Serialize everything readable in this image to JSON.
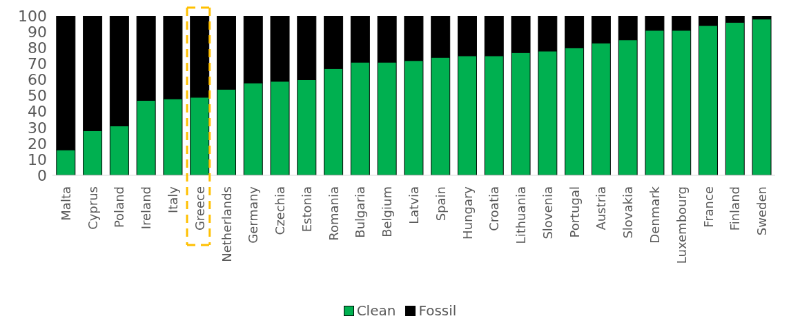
{
  "chart_data": {
    "type": "bar",
    "stacked": true,
    "categories": [
      "Malta",
      "Cyprus",
      "Poland",
      "Ireland",
      "Italy",
      "Greece",
      "Netherlands",
      "Germany",
      "Czechia",
      "Estonia",
      "Romania",
      "Bulgaria",
      "Belgium",
      "Latvia",
      "Spain",
      "Hungary",
      "Croatia",
      "Lithuania",
      "Slovenia",
      "Portugal",
      "Austria",
      "Slovakia",
      "Denmark",
      "Luxembourg",
      "France",
      "Finland",
      "Sweden"
    ],
    "series": [
      {
        "name": "Clean",
        "color": "#00b050",
        "values": [
          16,
          28,
          31,
          47,
          48,
          49,
          54,
          58,
          59,
          60,
          67,
          71,
          71,
          72,
          74,
          75,
          75,
          77,
          78,
          80,
          83,
          85,
          91,
          91,
          94,
          96,
          98
        ]
      },
      {
        "name": "Fossil",
        "color": "#000000",
        "values": [
          84,
          72,
          69,
          53,
          52,
          51,
          46,
          42,
          41,
          40,
          33,
          29,
          29,
          28,
          26,
          25,
          25,
          23,
          22,
          20,
          17,
          15,
          9,
          9,
          6,
          4,
          2
        ]
      }
    ],
    "ylim": [
      0,
      100
    ],
    "yticks": [
      0,
      10,
      20,
      30,
      40,
      50,
      60,
      70,
      80,
      90,
      100
    ],
    "grid": false,
    "legend": "bottom"
  }
}
